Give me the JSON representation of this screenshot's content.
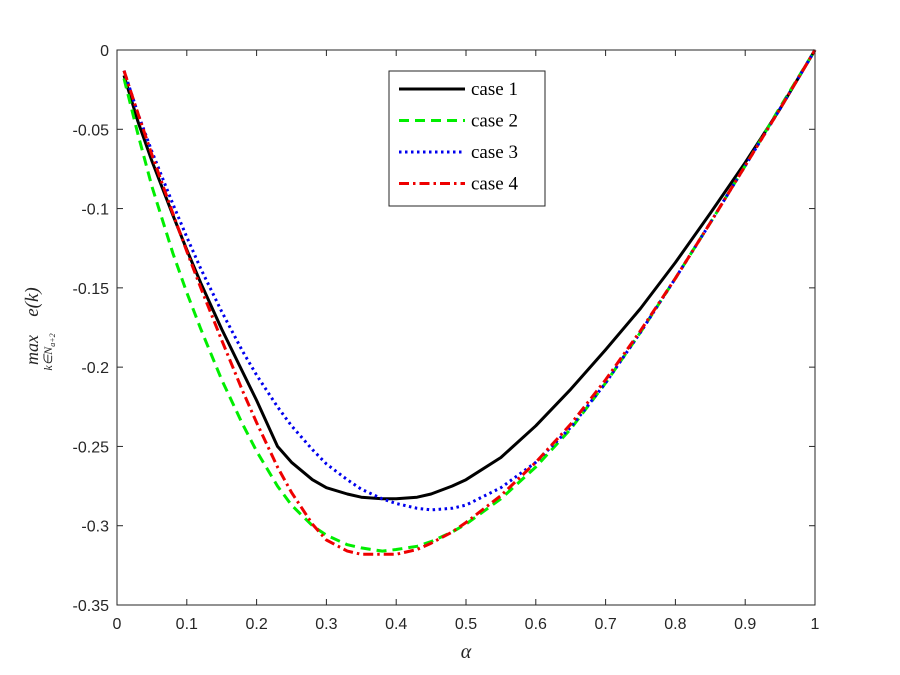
{
  "chart_data": {
    "type": "line",
    "xlabel": "α",
    "ylabel": {
      "operator": "max",
      "subscript": "k∈N",
      "subscript_sub": "a+2",
      "expression": "e(k)"
    },
    "xlim": [
      0,
      1
    ],
    "ylim": [
      -0.35,
      0
    ],
    "xticks": [
      "0",
      "0.1",
      "0.2",
      "0.3",
      "0.4",
      "0.5",
      "0.6",
      "0.7",
      "0.8",
      "0.9",
      "1"
    ],
    "yticks": [
      "0",
      "-0.05",
      "-0.1",
      "-0.15",
      "-0.2",
      "-0.25",
      "-0.3",
      "-0.35"
    ],
    "grid": false,
    "legend_position": "top-center",
    "series": [
      {
        "name": "case 1",
        "color": "#000000",
        "style": "solid",
        "x": [
          0.01,
          0.03,
          0.05,
          0.08,
          0.1,
          0.12,
          0.15,
          0.18,
          0.2,
          0.23,
          0.25,
          0.28,
          0.3,
          0.33,
          0.35,
          0.38,
          0.4,
          0.43,
          0.45,
          0.48,
          0.5,
          0.55,
          0.6,
          0.65,
          0.7,
          0.75,
          0.8,
          0.85,
          0.9,
          0.95,
          1.0
        ],
        "y": [
          -0.016,
          -0.045,
          -0.07,
          -0.104,
          -0.126,
          -0.147,
          -0.176,
          -0.203,
          -0.221,
          -0.25,
          -0.26,
          -0.271,
          -0.276,
          -0.28,
          -0.282,
          -0.283,
          -0.283,
          -0.282,
          -0.28,
          -0.275,
          -0.271,
          -0.257,
          -0.237,
          -0.214,
          -0.189,
          -0.163,
          -0.134,
          -0.103,
          -0.071,
          -0.037,
          0.0
        ]
      },
      {
        "name": "case 2",
        "color": "#00ee00",
        "style": "dashed",
        "x": [
          0.01,
          0.03,
          0.05,
          0.08,
          0.1,
          0.12,
          0.15,
          0.18,
          0.2,
          0.23,
          0.25,
          0.28,
          0.3,
          0.33,
          0.35,
          0.38,
          0.4,
          0.43,
          0.45,
          0.48,
          0.5,
          0.55,
          0.6,
          0.65,
          0.7,
          0.75,
          0.8,
          0.85,
          0.9,
          0.95,
          1.0
        ],
        "y": [
          -0.018,
          -0.053,
          -0.086,
          -0.128,
          -0.153,
          -0.176,
          -0.208,
          -0.236,
          -0.253,
          -0.275,
          -0.287,
          -0.3,
          -0.306,
          -0.312,
          -0.314,
          -0.316,
          -0.315,
          -0.313,
          -0.31,
          -0.304,
          -0.299,
          -0.283,
          -0.263,
          -0.239,
          -0.21,
          -0.178,
          -0.144,
          -0.109,
          -0.073,
          -0.036,
          0.0
        ]
      },
      {
        "name": "case 3",
        "color": "#0000ee",
        "style": "dotted",
        "x": [
          0.01,
          0.03,
          0.05,
          0.08,
          0.1,
          0.12,
          0.15,
          0.18,
          0.2,
          0.23,
          0.25,
          0.28,
          0.3,
          0.33,
          0.35,
          0.38,
          0.4,
          0.43,
          0.45,
          0.48,
          0.5,
          0.55,
          0.6,
          0.65,
          0.7,
          0.75,
          0.8,
          0.85,
          0.9,
          0.95,
          1.0
        ],
        "y": [
          -0.013,
          -0.04,
          -0.064,
          -0.097,
          -0.118,
          -0.138,
          -0.165,
          -0.19,
          -0.205,
          -0.225,
          -0.237,
          -0.252,
          -0.261,
          -0.271,
          -0.277,
          -0.283,
          -0.286,
          -0.289,
          -0.29,
          -0.289,
          -0.287,
          -0.276,
          -0.26,
          -0.238,
          -0.21,
          -0.178,
          -0.144,
          -0.109,
          -0.073,
          -0.037,
          0.0
        ]
      },
      {
        "name": "case 4",
        "color": "#ee0000",
        "style": "dashdot",
        "x": [
          0.01,
          0.03,
          0.05,
          0.08,
          0.1,
          0.12,
          0.15,
          0.18,
          0.2,
          0.23,
          0.25,
          0.28,
          0.3,
          0.33,
          0.35,
          0.38,
          0.4,
          0.43,
          0.45,
          0.48,
          0.5,
          0.55,
          0.6,
          0.65,
          0.7,
          0.75,
          0.8,
          0.85,
          0.9,
          0.95,
          1.0
        ],
        "y": [
          -0.013,
          -0.04,
          -0.066,
          -0.103,
          -0.127,
          -0.15,
          -0.183,
          -0.215,
          -0.235,
          -0.263,
          -0.279,
          -0.299,
          -0.309,
          -0.316,
          -0.318,
          -0.318,
          -0.318,
          -0.315,
          -0.311,
          -0.304,
          -0.298,
          -0.281,
          -0.26,
          -0.236,
          -0.208,
          -0.177,
          -0.144,
          -0.109,
          -0.073,
          -0.037,
          0.0
        ]
      }
    ]
  }
}
